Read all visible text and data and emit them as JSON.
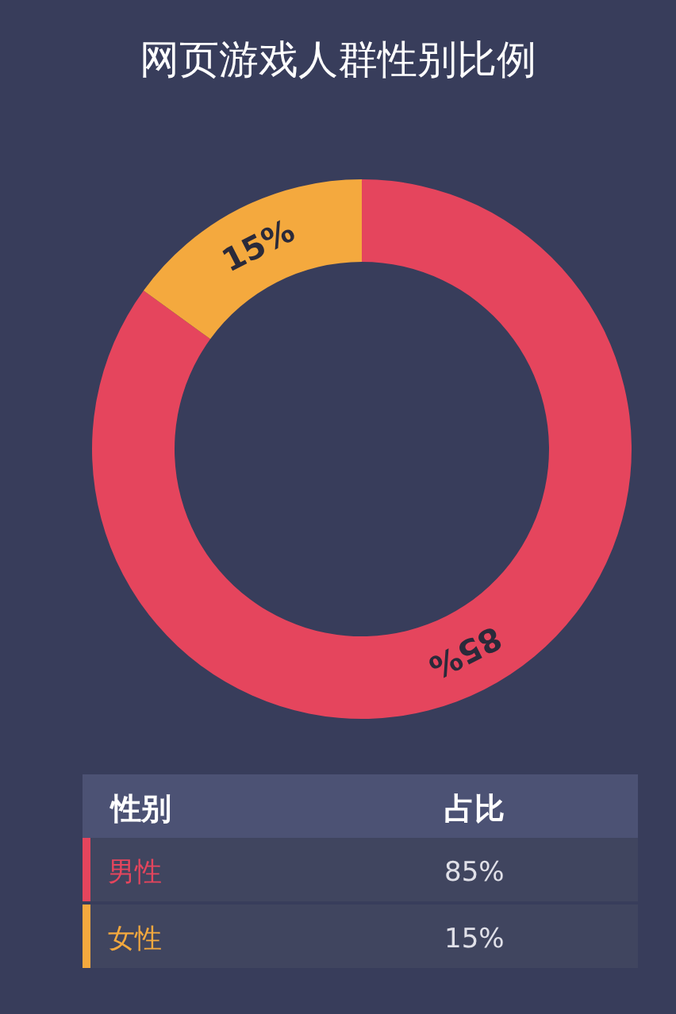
{
  "chart_data": {
    "type": "donut",
    "title": "网页游戏人群性别比例",
    "categories": [
      "男性",
      "女性"
    ],
    "values": [
      85,
      15
    ],
    "colors": [
      "#e5455d",
      "#f4a93e"
    ],
    "value_labels": [
      "85%",
      "15%"
    ],
    "legend": "bottom",
    "legend_title": "性别",
    "annotations": [
      "占比"
    ]
  }
}
